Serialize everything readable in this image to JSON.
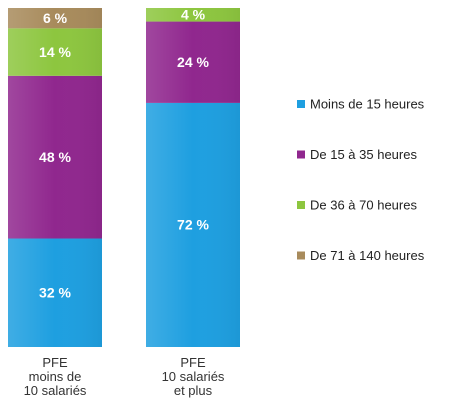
{
  "chart_data": {
    "type": "stacked-bar",
    "categories": [
      "PFE\nmoins de\n10 salariés",
      "PFE\n10 salariés\net plus"
    ],
    "series": [
      {
        "name": "Moins de 15 heures",
        "color": "#1e9fe0",
        "values": [
          32,
          72
        ],
        "value_labels": [
          "32 %",
          "72 %"
        ]
      },
      {
        "name": "De 15 à 35 heures",
        "color": "#90278e",
        "values": [
          48,
          24
        ],
        "value_labels": [
          "48 %",
          "24 %"
        ]
      },
      {
        "name": "De 36 à 70 heures",
        "color": "#8dc63f",
        "values": [
          14,
          4
        ],
        "value_labels": [
          "14 %",
          "4 %"
        ]
      },
      {
        "name": "De 71 à 140 heures",
        "color": "#a88b5c",
        "values": [
          6,
          null
        ],
        "value_labels": [
          "6 %",
          null
        ]
      }
    ],
    "ylim": [
      0,
      100
    ]
  }
}
